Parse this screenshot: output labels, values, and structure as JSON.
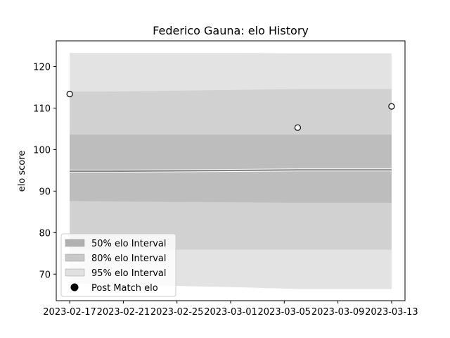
{
  "chart_data": {
    "type": "line",
    "title": "Federico Gauna: elo History",
    "xlabel": "",
    "ylabel": "elo score",
    "ylim": [
      63.6,
      126.2
    ],
    "xlim": [
      "2023-02-16",
      "2023-03-14"
    ],
    "x_ticks": [
      "2023-02-17",
      "2023-02-21",
      "2023-02-25",
      "2023-03-01",
      "2023-03-05",
      "2023-03-09",
      "2023-03-13"
    ],
    "y_ticks": [
      70,
      80,
      90,
      100,
      110,
      120
    ],
    "grid": false,
    "legend_position": "lower-left",
    "dates": [
      "2023-02-17",
      "2023-02-20",
      "2023-03-02",
      "2023-03-06",
      "2023-03-13"
    ],
    "mean": [
      94.8,
      94.8,
      95.0,
      95.1,
      95.1
    ],
    "intervals": [
      {
        "name": "50% elo Interval",
        "color": "#bdbdbd",
        "lower": [
          87.6,
          87.5,
          87.3,
          87.2,
          87.2
        ],
        "upper": [
          103.6,
          103.6,
          103.6,
          103.6,
          103.6
        ]
      },
      {
        "name": "80% elo Interval",
        "color": "#d1d1d1",
        "lower": [
          75.9,
          75.9,
          75.9,
          75.9,
          75.9
        ],
        "upper": [
          114.0,
          114.0,
          114.4,
          114.6,
          114.6
        ]
      },
      {
        "name": "95% elo Interval",
        "color": "#e3e3e3",
        "lower": [
          67.8,
          67.5,
          66.8,
          66.4,
          66.4
        ],
        "upper": [
          123.3,
          123.3,
          123.3,
          123.2,
          123.2
        ]
      }
    ],
    "series": [
      {
        "name": "Post Match elo",
        "points": [
          {
            "x": "2023-02-17",
            "y": 113.4
          },
          {
            "x": "2023-03-06",
            "y": 105.3
          },
          {
            "x": "2023-03-13",
            "y": 110.4
          }
        ]
      }
    ],
    "legend": [
      {
        "label": "50% elo Interval",
        "marker": "patch",
        "color": "#b0b0b0"
      },
      {
        "label": "80% elo Interval",
        "marker": "patch",
        "color": "#c8c8c8"
      },
      {
        "label": "95% elo Interval",
        "marker": "patch",
        "color": "#e0e0e0"
      },
      {
        "label": "Post Match elo",
        "marker": "dot",
        "color": "#000000"
      }
    ],
    "colors": {
      "mean_line": "#808080",
      "point_fill": "#ffffff",
      "point_edge": "#000000"
    }
  }
}
